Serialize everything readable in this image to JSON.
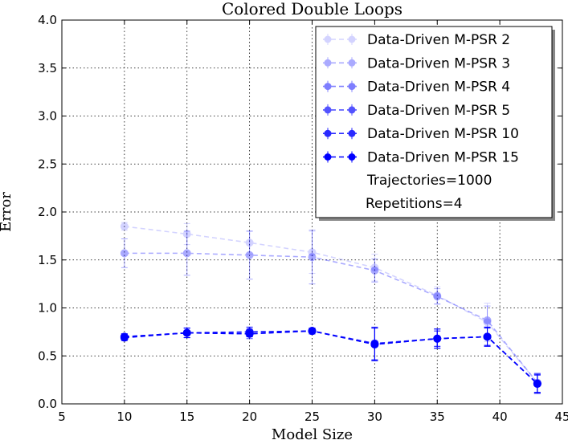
{
  "chart_data": {
    "type": "line",
    "title": "Colored Double Loops",
    "xlabel": "Model Size",
    "ylabel": "Error",
    "xlim": [
      5,
      45
    ],
    "ylim": [
      0.0,
      4.0
    ],
    "xticks": [
      "5",
      "10",
      "15",
      "20",
      "25",
      "30",
      "35",
      "40",
      "45"
    ],
    "yticks": [
      "0.0",
      "0.5",
      "1.0",
      "1.5",
      "2.0",
      "2.5",
      "3.0",
      "3.5",
      "4.0"
    ],
    "grid": true,
    "legend_position": "top-right",
    "x": [
      10,
      15,
      20,
      25,
      30,
      35,
      39,
      43
    ],
    "series": [
      {
        "name": "Data-Driven M-PSR 2",
        "color": "#0000ff",
        "opacity": 0.17,
        "values": [
          1.85,
          1.77,
          1.68,
          1.58,
          1.42,
          1.13,
          0.85,
          0.22
        ],
        "errors": [
          0.04,
          0.11,
          0.12,
          0.22,
          0.14,
          0.09,
          0.2,
          0.1
        ]
      },
      {
        "name": "Data-Driven M-PSR 3",
        "color": "#0000ff",
        "opacity": 0.33,
        "values": [
          1.57,
          1.57,
          1.55,
          1.53,
          1.39,
          1.12,
          0.87,
          0.22
        ],
        "errors": [
          0.15,
          0.23,
          0.25,
          0.28,
          0.12,
          0.08,
          0.15,
          0.1
        ]
      },
      {
        "name": "Data-Driven M-PSR 4",
        "color": "#0000ff",
        "opacity": 0.5,
        "values": [
          0.7,
          0.74,
          0.75,
          0.76,
          0.62,
          0.68,
          0.7,
          0.21
        ],
        "errors": [
          0.03,
          0.05,
          0.05,
          0.03,
          0.17,
          0.1,
          0.1,
          0.1
        ]
      },
      {
        "name": "Data-Driven M-PSR 5",
        "color": "#0000ff",
        "opacity": 0.67,
        "values": [
          0.7,
          0.74,
          0.73,
          0.76,
          0.62,
          0.68,
          0.7,
          0.21
        ],
        "errors": [
          0.03,
          0.05,
          0.05,
          0.03,
          0.17,
          0.1,
          0.1,
          0.1
        ]
      },
      {
        "name": "Data-Driven M-PSR 10",
        "color": "#0000ff",
        "opacity": 0.83,
        "values": [
          0.7,
          0.74,
          0.75,
          0.76,
          0.63,
          0.68,
          0.7,
          0.21
        ],
        "errors": [
          0.03,
          0.05,
          0.05,
          0.03,
          0.17,
          0.1,
          0.1,
          0.1
        ]
      },
      {
        "name": "Data-Driven M-PSR 15",
        "color": "#0000ff",
        "opacity": 1.0,
        "values": [
          0.69,
          0.74,
          0.73,
          0.76,
          0.62,
          0.68,
          0.7,
          0.21
        ],
        "errors": [
          0.03,
          0.05,
          0.03,
          0.03,
          0.17,
          0.08,
          0.09,
          0.09
        ]
      }
    ],
    "annotations": [
      "Trajectories=1000",
      "Repetitions=4"
    ]
  }
}
